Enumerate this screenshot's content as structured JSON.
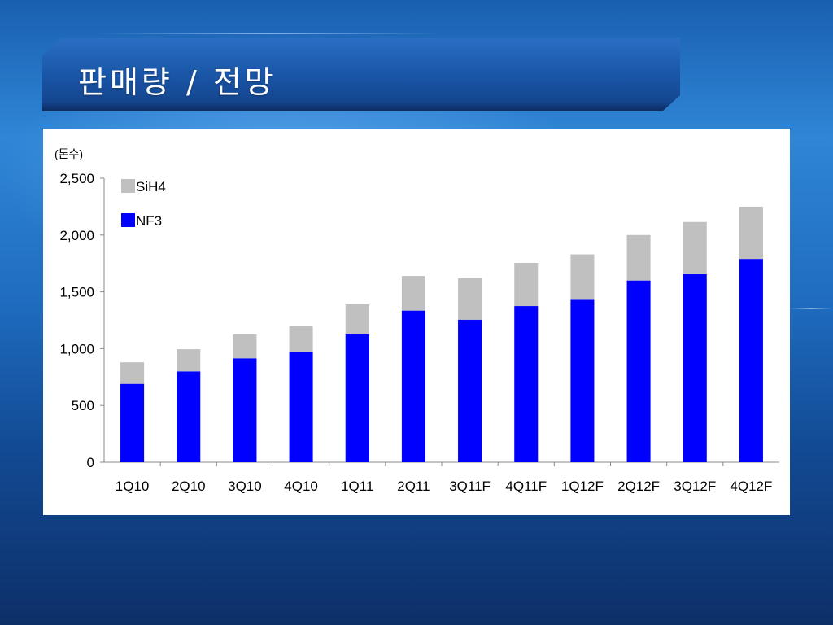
{
  "slide": {
    "title": "판매량 / 전망"
  },
  "colors": {
    "nf3": "#0000ff",
    "sih4": "#c0c0c0"
  },
  "chart_data": {
    "type": "bar",
    "stacked": true,
    "unit_label": "(톤수)",
    "categories": [
      "1Q10",
      "2Q10",
      "3Q10",
      "4Q10",
      "1Q11",
      "2Q11",
      "3Q11F",
      "4Q11F",
      "1Q12F",
      "2Q12F",
      "3Q12F",
      "4Q12F"
    ],
    "series": [
      {
        "name": "NF3",
        "color": "#0000ff",
        "values": [
          690,
          800,
          915,
          975,
          1125,
          1335,
          1255,
          1375,
          1430,
          1600,
          1655,
          1790
        ]
      },
      {
        "name": "SiH4",
        "color": "#c0c0c0",
        "values": [
          190,
          195,
          210,
          225,
          265,
          305,
          365,
          380,
          400,
          400,
          460,
          460
        ]
      }
    ],
    "ylim": [
      0,
      2500
    ],
    "yticks": [
      0,
      500,
      1000,
      1500,
      2000,
      2500
    ],
    "ytick_labels": [
      "0",
      "500",
      "1,000",
      "1,500",
      "2,000",
      "2,500"
    ],
    "grid": false,
    "legend_position": "top-left",
    "legend_order": [
      "SiH4",
      "NF3"
    ]
  }
}
